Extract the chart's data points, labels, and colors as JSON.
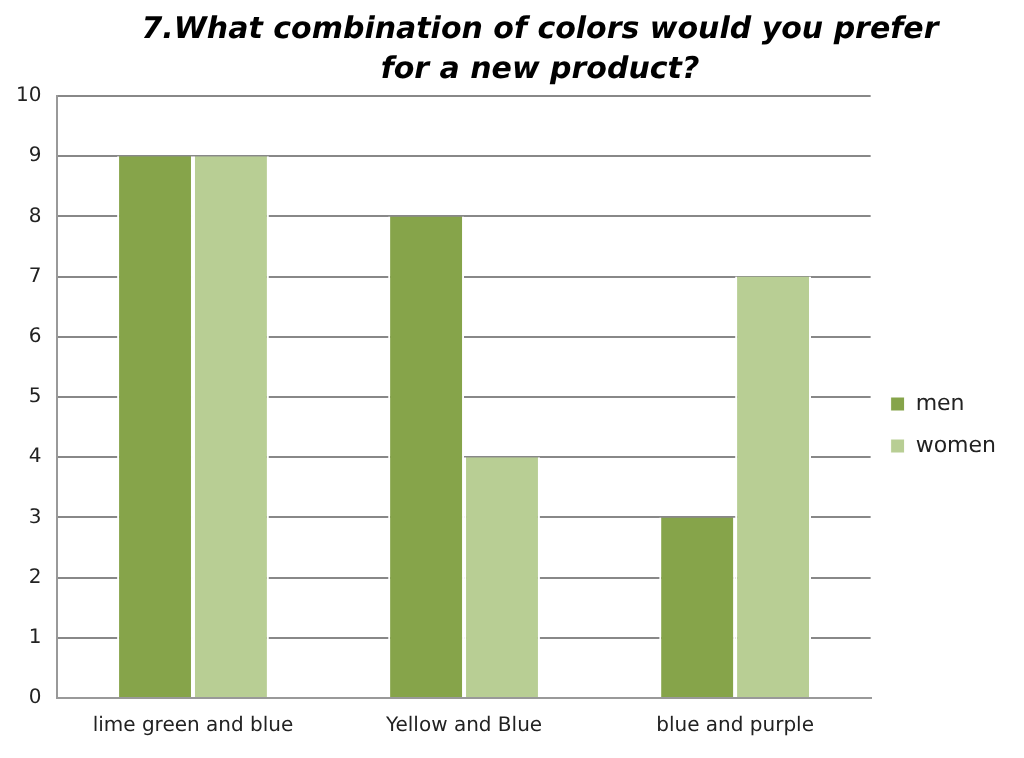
{
  "chart_data": {
    "type": "bar",
    "title": "7.What combination of colors  would you prefer for a new product?",
    "categories": [
      "lime green and blue",
      "Yellow and Blue",
      "blue and purple"
    ],
    "series": [
      {
        "name": "men",
        "color": "#86a44a",
        "values": [
          9,
          8,
          3
        ]
      },
      {
        "name": "women",
        "color": "#b8ce94",
        "values": [
          9,
          4,
          7
        ]
      }
    ],
    "ylim": [
      0,
      10
    ],
    "yticks": [
      0,
      1,
      2,
      3,
      4,
      5,
      6,
      7,
      8,
      9,
      10
    ],
    "grid": "y",
    "legend": "right"
  }
}
